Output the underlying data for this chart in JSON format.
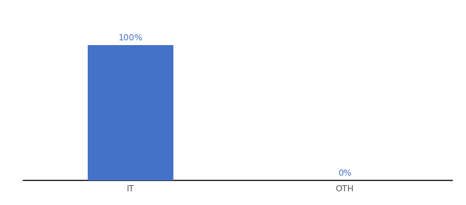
{
  "categories": [
    "IT",
    "OTH"
  ],
  "values": [
    100,
    0
  ],
  "bar_color": "#4472c8",
  "label_color": "#4472c8",
  "background_color": "#ffffff",
  "axis_line_color": "#111111",
  "tick_label_color": "#555555",
  "bar_label_fontsize": 9,
  "tick_fontsize": 9,
  "ylim": [
    0,
    115
  ],
  "bar_width": 0.4,
  "figsize": [
    6.8,
    3.0
  ],
  "dpi": 100,
  "xlim": [
    -0.5,
    1.5
  ]
}
